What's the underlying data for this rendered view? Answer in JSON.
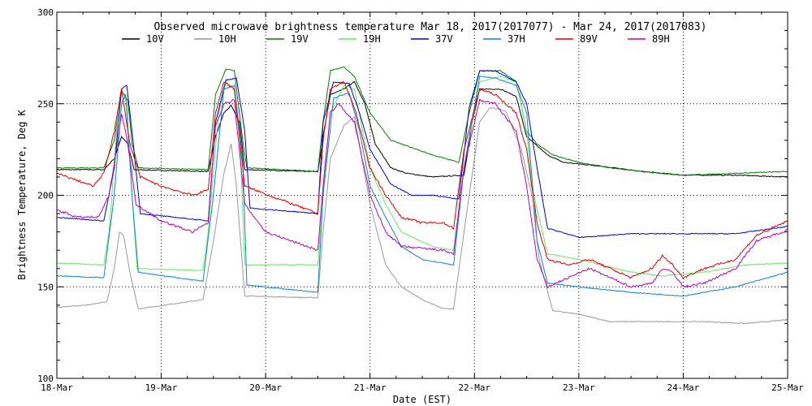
{
  "chart_data": {
    "type": "line",
    "title": "Observed microwave brightness temperature Mar 18, 2017(2017077) - Mar 24, 2017(2017083)",
    "xlabel": "Date (EST)",
    "ylabel": "Brightness Temperature, Deg K",
    "xlim": [
      0,
      7
    ],
    "ylim": [
      100,
      300
    ],
    "x_tick_values": [
      0,
      1,
      2,
      3,
      4,
      5,
      6,
      7
    ],
    "x_tick_labels": [
      "18-Mar",
      "19-Mar",
      "20-Mar",
      "21-Mar",
      "22-Mar",
      "23-Mar",
      "24-Mar",
      "25-Mar"
    ],
    "y_ticks": [
      100,
      150,
      200,
      250,
      300
    ],
    "grid": true,
    "grid_style": "dotted",
    "legend_position": "top",
    "x_unit": "days since 18-Mar 00:00",
    "series": [
      {
        "name": "10V",
        "color": "#000000",
        "points": [
          [
            0,
            214
          ],
          [
            0.45,
            214
          ],
          [
            0.55,
            220
          ],
          [
            0.62,
            232
          ],
          [
            0.68,
            228
          ],
          [
            0.74,
            214
          ],
          [
            1.45,
            213
          ],
          [
            1.52,
            232
          ],
          [
            1.6,
            245
          ],
          [
            1.67,
            249
          ],
          [
            1.75,
            240
          ],
          [
            1.8,
            214
          ],
          [
            2.5,
            213
          ],
          [
            2.55,
            232
          ],
          [
            2.62,
            255
          ],
          [
            2.75,
            258
          ],
          [
            2.85,
            262
          ],
          [
            2.95,
            250
          ],
          [
            3.05,
            228
          ],
          [
            3.2,
            215
          ],
          [
            3.35,
            212
          ],
          [
            3.6,
            210
          ],
          [
            3.9,
            211
          ],
          [
            3.98,
            240
          ],
          [
            4.05,
            258
          ],
          [
            4.25,
            258
          ],
          [
            4.4,
            254
          ],
          [
            4.5,
            232
          ],
          [
            4.6,
            227
          ],
          [
            4.7,
            222
          ],
          [
            4.85,
            218
          ],
          [
            5.2,
            216
          ],
          [
            5.6,
            213
          ],
          [
            6.0,
            211
          ],
          [
            6.5,
            211
          ],
          [
            7,
            210
          ]
        ]
      },
      {
        "name": "10H",
        "color": "#999999",
        "points": [
          [
            0,
            139
          ],
          [
            0.3,
            140
          ],
          [
            0.48,
            142
          ],
          [
            0.55,
            160
          ],
          [
            0.6,
            180
          ],
          [
            0.64,
            178
          ],
          [
            0.7,
            158
          ],
          [
            0.78,
            138
          ],
          [
            1.4,
            143
          ],
          [
            1.5,
            175
          ],
          [
            1.6,
            212
          ],
          [
            1.67,
            228
          ],
          [
            1.72,
            205
          ],
          [
            1.8,
            145
          ],
          [
            2.5,
            144
          ],
          [
            2.55,
            180
          ],
          [
            2.62,
            220
          ],
          [
            2.75,
            238
          ],
          [
            2.85,
            243
          ],
          [
            3.0,
            195
          ],
          [
            3.15,
            162
          ],
          [
            3.3,
            150
          ],
          [
            3.5,
            143
          ],
          [
            3.7,
            138
          ],
          [
            3.8,
            138
          ],
          [
            3.9,
            180
          ],
          [
            4.05,
            240
          ],
          [
            4.15,
            248
          ],
          [
            4.3,
            246
          ],
          [
            4.45,
            225
          ],
          [
            4.55,
            200
          ],
          [
            4.62,
            165
          ],
          [
            4.75,
            137
          ],
          [
            5.0,
            135
          ],
          [
            5.3,
            131
          ],
          [
            5.8,
            131
          ],
          [
            6.2,
            131
          ],
          [
            6.6,
            130
          ],
          [
            7,
            132
          ]
        ]
      },
      {
        "name": "19V",
        "color": "#008000",
        "points": [
          [
            0,
            215
          ],
          [
            0.45,
            215
          ],
          [
            0.55,
            230
          ],
          [
            0.62,
            257
          ],
          [
            0.68,
            252
          ],
          [
            0.72,
            228
          ],
          [
            0.78,
            215
          ],
          [
            1.45,
            214
          ],
          [
            1.52,
            255
          ],
          [
            1.62,
            269
          ],
          [
            1.7,
            268
          ],
          [
            1.78,
            230
          ],
          [
            1.82,
            215
          ],
          [
            2.5,
            213
          ],
          [
            2.55,
            240
          ],
          [
            2.62,
            268
          ],
          [
            2.75,
            270
          ],
          [
            2.85,
            265
          ],
          [
            3.0,
            245
          ],
          [
            3.2,
            230
          ],
          [
            3.6,
            222
          ],
          [
            3.85,
            218
          ],
          [
            3.95,
            245
          ],
          [
            4.05,
            268
          ],
          [
            4.25,
            268
          ],
          [
            4.4,
            262
          ],
          [
            4.5,
            235
          ],
          [
            4.6,
            228
          ],
          [
            4.75,
            222
          ],
          [
            5.0,
            218
          ],
          [
            5.3,
            215
          ],
          [
            5.6,
            213
          ],
          [
            6.0,
            211
          ],
          [
            6.5,
            212
          ],
          [
            7,
            213
          ]
        ]
      },
      {
        "name": "19H",
        "color": "#66e666",
        "points": [
          [
            0,
            163
          ],
          [
            0.45,
            162
          ],
          [
            0.5,
            180
          ],
          [
            0.58,
            240
          ],
          [
            0.62,
            258
          ],
          [
            0.67,
            250
          ],
          [
            0.72,
            200
          ],
          [
            0.77,
            160
          ],
          [
            1.4,
            159
          ],
          [
            1.45,
            180
          ],
          [
            1.55,
            245
          ],
          [
            1.62,
            262
          ],
          [
            1.7,
            258
          ],
          [
            1.75,
            235
          ],
          [
            1.8,
            162
          ],
          [
            2.5,
            162
          ],
          [
            2.55,
            200
          ],
          [
            2.62,
            245
          ],
          [
            2.75,
            260
          ],
          [
            2.85,
            258
          ],
          [
            3.0,
            215
          ],
          [
            3.15,
            195
          ],
          [
            3.3,
            180
          ],
          [
            3.6,
            172
          ],
          [
            3.8,
            170
          ],
          [
            3.9,
            215
          ],
          [
            4.05,
            262
          ],
          [
            4.25,
            265
          ],
          [
            4.4,
            262
          ],
          [
            4.5,
            235
          ],
          [
            4.55,
            205
          ],
          [
            4.7,
            168
          ],
          [
            5.0,
            165
          ],
          [
            5.5,
            158
          ],
          [
            5.8,
            156
          ],
          [
            6.2,
            158
          ],
          [
            6.6,
            162
          ],
          [
            7,
            163
          ]
        ]
      },
      {
        "name": "37V",
        "color": "#0000cc",
        "points": [
          [
            0,
            188
          ],
          [
            0.45,
            186
          ],
          [
            0.55,
            215
          ],
          [
            0.62,
            258
          ],
          [
            0.67,
            260
          ],
          [
            0.72,
            235
          ],
          [
            0.8,
            190
          ],
          [
            1.45,
            186
          ],
          [
            1.52,
            240
          ],
          [
            1.62,
            263
          ],
          [
            1.72,
            264
          ],
          [
            1.8,
            235
          ],
          [
            1.85,
            193
          ],
          [
            2.5,
            190
          ],
          [
            2.55,
            240
          ],
          [
            2.65,
            262
          ],
          [
            2.8,
            261
          ],
          [
            2.9,
            245
          ],
          [
            3.0,
            225
          ],
          [
            3.2,
            206
          ],
          [
            3.4,
            200
          ],
          [
            3.6,
            200
          ],
          [
            3.85,
            198
          ],
          [
            3.95,
            248
          ],
          [
            4.05,
            268
          ],
          [
            4.2,
            268
          ],
          [
            4.4,
            262
          ],
          [
            4.5,
            250
          ],
          [
            4.6,
            215
          ],
          [
            4.7,
            182
          ],
          [
            5.0,
            177
          ],
          [
            5.5,
            179
          ],
          [
            6.0,
            179
          ],
          [
            6.5,
            179
          ],
          [
            7,
            183
          ]
        ]
      },
      {
        "name": "37H",
        "color": "#0a84d6",
        "points": [
          [
            0,
            156
          ],
          [
            0.45,
            155
          ],
          [
            0.55,
            200
          ],
          [
            0.62,
            250
          ],
          [
            0.66,
            255
          ],
          [
            0.72,
            200
          ],
          [
            0.78,
            158
          ],
          [
            1.4,
            153
          ],
          [
            1.5,
            200
          ],
          [
            1.6,
            258
          ],
          [
            1.7,
            260
          ],
          [
            1.78,
            220
          ],
          [
            1.82,
            151
          ],
          [
            2.5,
            147
          ],
          [
            2.55,
            200
          ],
          [
            2.65,
            253
          ],
          [
            2.8,
            256
          ],
          [
            2.9,
            235
          ],
          [
            3.0,
            205
          ],
          [
            3.15,
            188
          ],
          [
            3.3,
            172
          ],
          [
            3.5,
            165
          ],
          [
            3.8,
            162
          ],
          [
            3.9,
            215
          ],
          [
            4.05,
            265
          ],
          [
            4.2,
            264
          ],
          [
            4.4,
            260
          ],
          [
            4.5,
            245
          ],
          [
            4.6,
            175
          ],
          [
            4.7,
            152
          ],
          [
            5.0,
            150
          ],
          [
            5.5,
            147
          ],
          [
            6.0,
            145
          ],
          [
            6.5,
            150
          ],
          [
            7,
            158
          ]
        ]
      },
      {
        "name": "89V",
        "color": "#e00000",
        "points": [
          [
            0,
            212
          ],
          [
            0.2,
            208
          ],
          [
            0.35,
            205
          ],
          [
            0.45,
            212
          ],
          [
            0.55,
            235
          ],
          [
            0.62,
            258
          ],
          [
            0.7,
            228
          ],
          [
            0.8,
            210
          ],
          [
            1.0,
            205
          ],
          [
            1.3,
            200
          ],
          [
            1.45,
            203
          ],
          [
            1.52,
            245
          ],
          [
            1.6,
            262
          ],
          [
            1.7,
            258
          ],
          [
            1.8,
            205
          ],
          [
            2.5,
            190
          ],
          [
            2.55,
            230
          ],
          [
            2.62,
            258
          ],
          [
            2.75,
            262
          ],
          [
            2.85,
            248
          ],
          [
            3.0,
            215
          ],
          [
            3.15,
            200
          ],
          [
            3.3,
            188
          ],
          [
            3.5,
            185
          ],
          [
            3.7,
            185
          ],
          [
            3.8,
            182
          ],
          [
            3.9,
            225
          ],
          [
            4.05,
            258
          ],
          [
            4.2,
            255
          ],
          [
            4.4,
            245
          ],
          [
            4.5,
            225
          ],
          [
            4.6,
            185
          ],
          [
            4.7,
            165
          ],
          [
            4.9,
            162
          ],
          [
            5.1,
            165
          ],
          [
            5.3,
            160
          ],
          [
            5.5,
            155
          ],
          [
            5.7,
            160
          ],
          [
            5.8,
            167
          ],
          [
            5.9,
            162
          ],
          [
            6.0,
            155
          ],
          [
            6.2,
            160
          ],
          [
            6.5,
            165
          ],
          [
            6.7,
            178
          ],
          [
            7,
            186
          ]
        ]
      },
      {
        "name": "89H",
        "color": "#bb00bb",
        "points": [
          [
            0,
            192
          ],
          [
            0.2,
            188
          ],
          [
            0.4,
            188
          ],
          [
            0.5,
            200
          ],
          [
            0.58,
            228
          ],
          [
            0.62,
            245
          ],
          [
            0.68,
            228
          ],
          [
            0.76,
            195
          ],
          [
            1.0,
            186
          ],
          [
            1.3,
            180
          ],
          [
            1.45,
            185
          ],
          [
            1.52,
            238
          ],
          [
            1.6,
            250
          ],
          [
            1.7,
            252
          ],
          [
            1.8,
            195
          ],
          [
            2.0,
            180
          ],
          [
            2.5,
            170
          ],
          [
            2.55,
            205
          ],
          [
            2.62,
            245
          ],
          [
            2.7,
            250
          ],
          [
            2.85,
            240
          ],
          [
            3.0,
            200
          ],
          [
            3.15,
            180
          ],
          [
            3.3,
            172
          ],
          [
            3.5,
            171
          ],
          [
            3.7,
            170
          ],
          [
            3.8,
            168
          ],
          [
            3.9,
            215
          ],
          [
            4.05,
            252
          ],
          [
            4.2,
            250
          ],
          [
            4.4,
            235
          ],
          [
            4.5,
            205
          ],
          [
            4.6,
            165
          ],
          [
            4.7,
            150
          ],
          [
            4.9,
            155
          ],
          [
            5.1,
            160
          ],
          [
            5.3,
            155
          ],
          [
            5.5,
            150
          ],
          [
            5.7,
            152
          ],
          [
            5.8,
            160
          ],
          [
            5.9,
            158
          ],
          [
            6.0,
            150
          ],
          [
            6.2,
            152
          ],
          [
            6.5,
            160
          ],
          [
            6.7,
            175
          ],
          [
            7,
            181
          ]
        ]
      }
    ]
  }
}
